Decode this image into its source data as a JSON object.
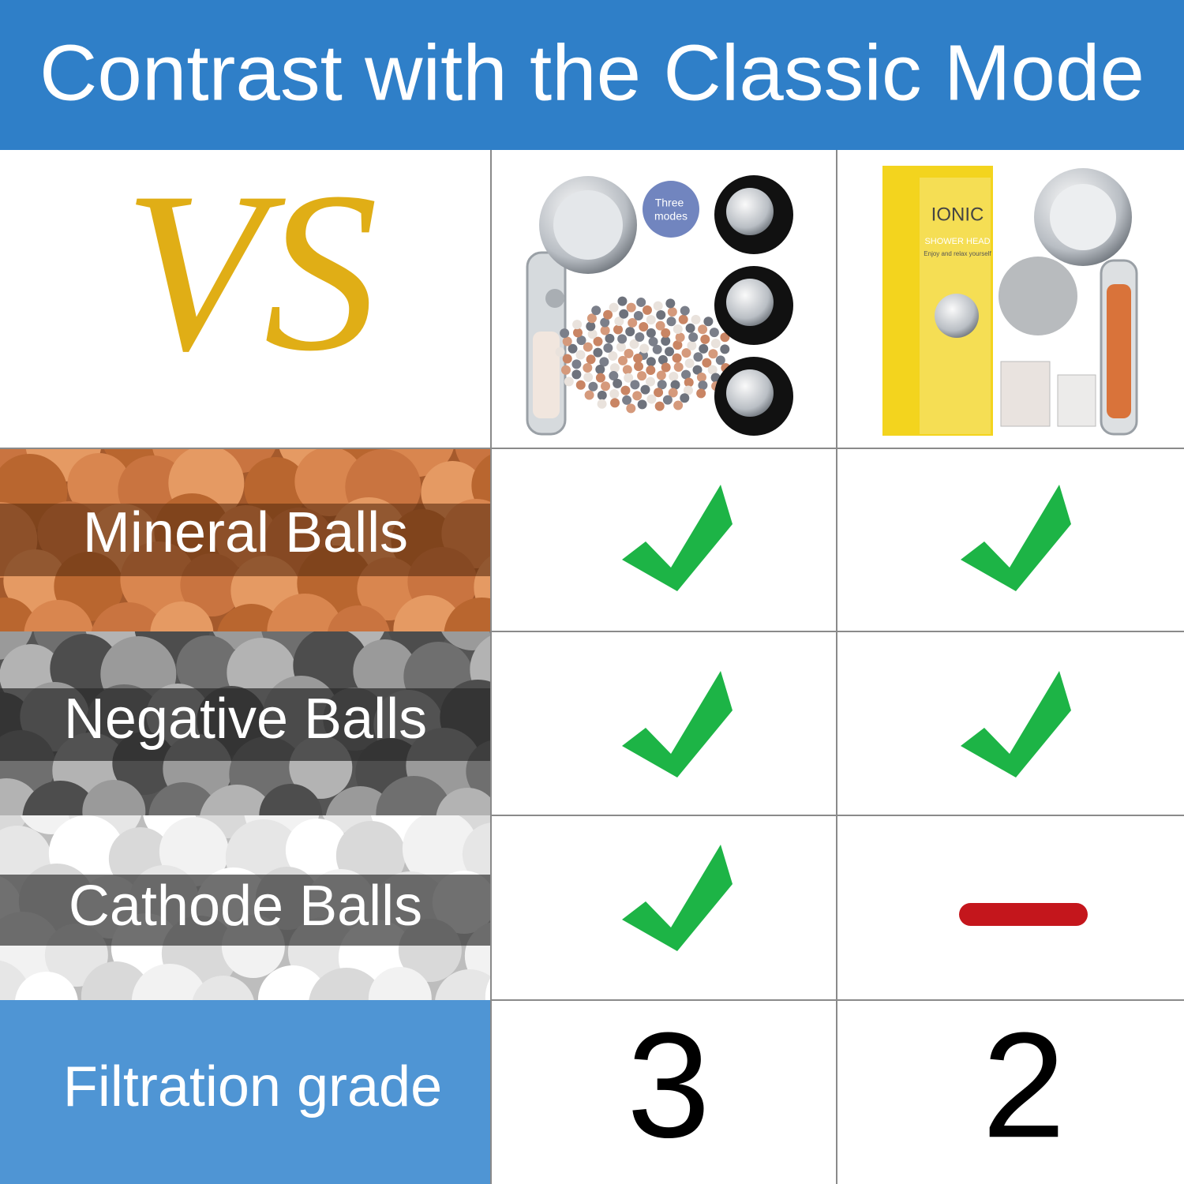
{
  "header": {
    "title": "Contrast with the Classic Mode"
  },
  "vs": "VS",
  "products": [
    {
      "badge": [
        "Three",
        "modes"
      ]
    },
    {
      "brand": "IONIC",
      "subtitle": "SHOWER HEAD",
      "tagline": "Enjoy and relax yourself"
    }
  ],
  "table": {
    "rows": [
      {
        "label": "Mineral Balls"
      },
      {
        "label": "Negative Balls"
      },
      {
        "label": "Cathode Balls"
      },
      {
        "label": "Filtration grade",
        "values": [
          3,
          2
        ]
      }
    ]
  }
}
